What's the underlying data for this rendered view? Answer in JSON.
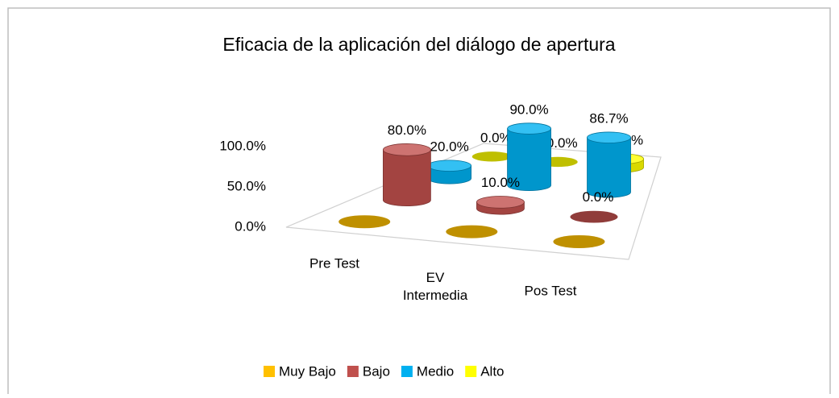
{
  "chart_data": {
    "type": "bar3d",
    "title": "Eficacia de la aplicación del diálogo de apertura",
    "categories": [
      "Pre Test",
      "EV Intermedia",
      "Pos Test"
    ],
    "series": [
      {
        "name": "Muy Bajo",
        "color": "#ffc000",
        "values": [
          0,
          0,
          0
        ]
      },
      {
        "name": "Bajo",
        "color": "#c0504d",
        "values": [
          80,
          10,
          0
        ],
        "value_labels": [
          "80.0%",
          "10.0%",
          "0.0%"
        ]
      },
      {
        "name": "Medio",
        "color": "#00b0f0",
        "values": [
          20,
          90,
          86.7
        ],
        "value_labels": [
          "20.0%",
          "90.0%",
          "86.7%"
        ]
      },
      {
        "name": "Alto",
        "color": "#ffff00",
        "values": [
          0,
          0,
          13.3
        ],
        "value_labels": [
          "0.0%",
          "0.0%",
          "13.3%"
        ]
      }
    ],
    "ylim": [
      0,
      100
    ],
    "yticks": [
      {
        "value": 0,
        "label": "0.0%"
      },
      {
        "value": 50,
        "label": "50.0%"
      },
      {
        "value": 100,
        "label": "100.0%"
      }
    ],
    "legend": "bottom"
  }
}
